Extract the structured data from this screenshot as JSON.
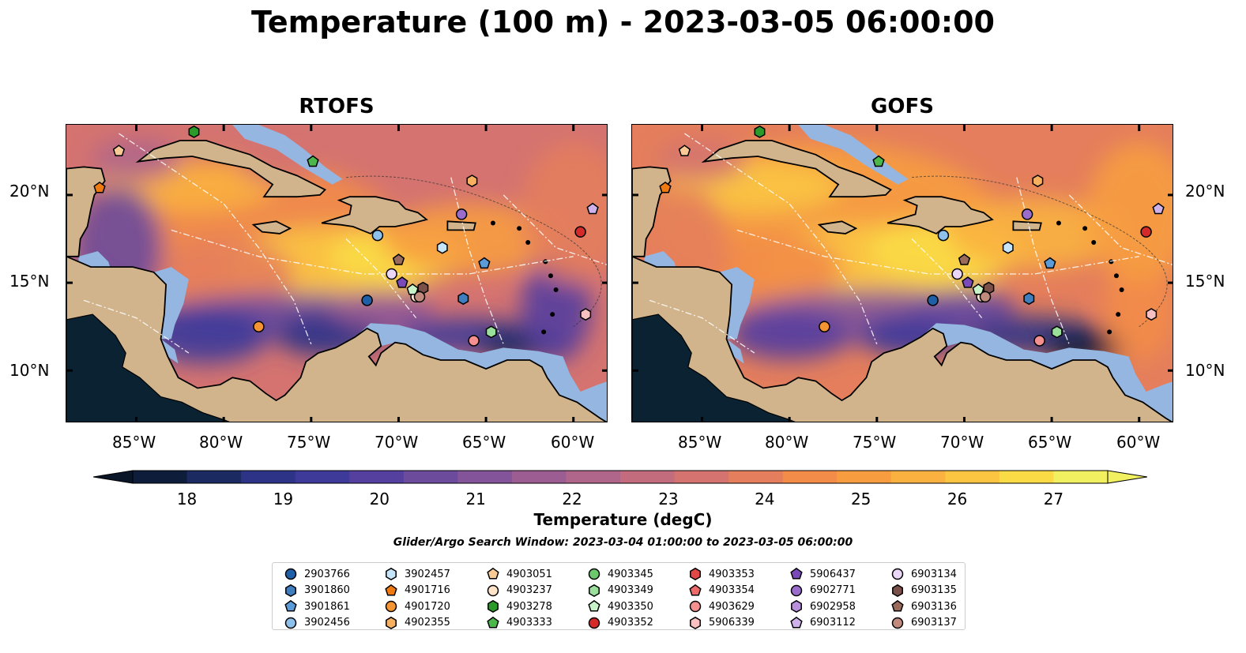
{
  "title": "Temperature (100 m) - 2023-03-05 06:00:00",
  "panels": [
    {
      "title": "RTOFS",
      "left": 83
    },
    {
      "title": "GOFS",
      "left": 799
    }
  ],
  "map": {
    "lon_range": [
      -89,
      -58
    ],
    "lat_range": [
      7,
      24
    ],
    "lon_ticks": [
      "85°W",
      "80°W",
      "75°W",
      "70°W",
      "65°W",
      "60°W"
    ],
    "lat_ticks": [
      "20°N",
      "15°N",
      "10°N"
    ],
    "colors": {
      "land": "#d2b48c",
      "shelf": "#94b6e0",
      "deep_pacific": "#0b2233",
      "contour": "#333333",
      "eez": "#ffffff"
    }
  },
  "colorbar": {
    "label": "Temperature (degC)",
    "ticks": [
      "18",
      "19",
      "20",
      "21",
      "22",
      "23",
      "24",
      "25",
      "26",
      "27"
    ],
    "colors": [
      "#0d1d3a",
      "#1b2a60",
      "#2d3387",
      "#3d3a9a",
      "#553f9f",
      "#6c4a9c",
      "#84549a",
      "#9b5d92",
      "#b0658b",
      "#c26c7d",
      "#d47370",
      "#e47e5c",
      "#f28c48",
      "#f79d40",
      "#fab140",
      "#fbc542",
      "#fadb46",
      "#f0f060"
    ]
  },
  "search_window": "Glider/Argo Search Window: 2023-03-04 01:00:00 to 2023-03-05 06:00:00",
  "legend": [
    [
      {
        "id": "2903766",
        "shape": "circle",
        "color": "#1f5fa8"
      },
      {
        "id": "3901860",
        "shape": "hexagon",
        "color": "#3f7fc0"
      },
      {
        "id": "3901861",
        "shape": "pentagon",
        "color": "#5a9bd8"
      },
      {
        "id": "3902456",
        "shape": "circle",
        "color": "#8ec0ec"
      }
    ],
    [
      {
        "id": "3902457",
        "shape": "hexagon",
        "color": "#c6e4fa"
      },
      {
        "id": "4901716",
        "shape": "pentagon",
        "color": "#f07a12"
      },
      {
        "id": "4901720",
        "shape": "circle",
        "color": "#f59432"
      },
      {
        "id": "4902355",
        "shape": "hexagon",
        "color": "#f7b060"
      }
    ],
    [
      {
        "id": "4903051",
        "shape": "pentagon",
        "color": "#f9c996"
      },
      {
        "id": "4903237",
        "shape": "circle",
        "color": "#fde3c8"
      },
      {
        "id": "4903278",
        "shape": "hexagon",
        "color": "#2a9a2a"
      },
      {
        "id": "4903333",
        "shape": "pentagon",
        "color": "#4cb84c"
      }
    ],
    [
      {
        "id": "4903345",
        "shape": "circle",
        "color": "#6cc86c"
      },
      {
        "id": "4903349",
        "shape": "hexagon",
        "color": "#9ae09a"
      },
      {
        "id": "4903350",
        "shape": "pentagon",
        "color": "#c8f2c8"
      },
      {
        "id": "4903352",
        "shape": "circle",
        "color": "#d42a2a"
      }
    ],
    [
      {
        "id": "4903353",
        "shape": "hexagon",
        "color": "#e04848"
      },
      {
        "id": "4903354",
        "shape": "pentagon",
        "color": "#ec6a6a"
      },
      {
        "id": "4903629",
        "shape": "circle",
        "color": "#f49090"
      },
      {
        "id": "5906339",
        "shape": "hexagon",
        "color": "#f8c0c0"
      }
    ],
    [
      {
        "id": "5906437",
        "shape": "pentagon",
        "color": "#7a4ab8"
      },
      {
        "id": "6902771",
        "shape": "circle",
        "color": "#9a6ccc"
      },
      {
        "id": "6902958",
        "shape": "hexagon",
        "color": "#b890dc"
      },
      {
        "id": "6903112",
        "shape": "pentagon",
        "color": "#d0b2ea"
      }
    ],
    [
      {
        "id": "6903134",
        "shape": "circle",
        "color": "#ead6f6"
      },
      {
        "id": "6903135",
        "shape": "hexagon",
        "color": "#7a5048"
      },
      {
        "id": "6903136",
        "shape": "pentagon",
        "color": "#9a6a5a"
      },
      {
        "id": "6903137",
        "shape": "circle",
        "color": "#c08a7c"
      }
    ]
  ],
  "markers": [
    {
      "id": "2903766",
      "lon": -71.8,
      "lat": 14.0
    },
    {
      "id": "3902456",
      "lon": -71.2,
      "lat": 17.7
    },
    {
      "id": "3902457",
      "lon": -67.5,
      "lat": 17.0
    },
    {
      "id": "3901861",
      "lon": -65.1,
      "lat": 16.1
    },
    {
      "id": "3901860",
      "lon": -66.3,
      "lat": 14.1
    },
    {
      "id": "4901716",
      "lon": -87.1,
      "lat": 20.4
    },
    {
      "id": "4901720",
      "lon": -78.0,
      "lat": 12.5
    },
    {
      "id": "4902355",
      "lon": -65.8,
      "lat": 20.8
    },
    {
      "id": "4903051",
      "lon": -86.0,
      "lat": 22.5
    },
    {
      "id": "4903237",
      "lon": -69.0,
      "lat": 14.2
    },
    {
      "id": "4903278",
      "lon": -81.7,
      "lat": 23.6
    },
    {
      "id": "4903333",
      "lon": -74.9,
      "lat": 21.9
    },
    {
      "id": "4903349",
      "lon": -64.7,
      "lat": 12.2
    },
    {
      "id": "4903350",
      "lon": -69.2,
      "lat": 14.6
    },
    {
      "id": "4903352",
      "lon": -59.6,
      "lat": 17.9
    },
    {
      "id": "4903629",
      "lon": -65.7,
      "lat": 11.7
    },
    {
      "id": "5906339",
      "lon": -59.3,
      "lat": 13.2
    },
    {
      "id": "5906437",
      "lon": -69.8,
      "lat": 15.0
    },
    {
      "id": "6902771",
      "lon": -66.4,
      "lat": 18.9
    },
    {
      "id": "6903112",
      "lon": -58.9,
      "lat": 19.2
    },
    {
      "id": "6903134",
      "lon": -70.4,
      "lat": 15.5
    },
    {
      "id": "6903135",
      "lon": -68.6,
      "lat": 14.7
    },
    {
      "id": "6903136",
      "lon": -70.0,
      "lat": 16.3
    },
    {
      "id": "6903137",
      "lon": -68.8,
      "lat": 14.2
    }
  ]
}
